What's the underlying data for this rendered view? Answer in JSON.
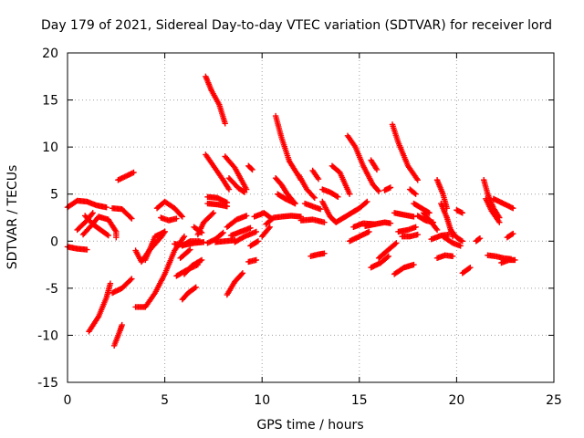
{
  "chart_data": {
    "type": "scatter",
    "title": "Day 179 of 2021, Sidereal Day-to-day VTEC variation (SDTVAR) for receiver lord",
    "xlabel": "GPS time / hours",
    "ylabel": "SDTVAR / TECUs",
    "xlim": [
      0,
      25
    ],
    "ylim": [
      -15,
      20
    ],
    "xticks": [
      0,
      5,
      10,
      15,
      20,
      25
    ],
    "yticks": [
      -15,
      -10,
      -5,
      0,
      5,
      10,
      15,
      20
    ],
    "grid": true,
    "marker": "+",
    "color": "#ff0000",
    "tracks": [
      [
        [
          0.0,
          3.6
        ],
        [
          0.5,
          4.3
        ],
        [
          1.0,
          4.2
        ],
        [
          1.5,
          3.8
        ],
        [
          2.0,
          3.6
        ]
      ],
      [
        [
          0.0,
          -0.6
        ],
        [
          0.5,
          -0.8
        ],
        [
          1.0,
          -0.9
        ]
      ],
      [
        [
          0.5,
          1.2
        ],
        [
          1.0,
          2.2
        ],
        [
          1.3,
          3.0
        ]
      ],
      [
        [
          0.8,
          0.7
        ],
        [
          1.2,
          1.6
        ],
        [
          1.6,
          2.6
        ],
        [
          2.1,
          2.3
        ],
        [
          2.5,
          1.0
        ],
        [
          2.5,
          0.4
        ]
      ],
      [
        [
          0.9,
          2.7
        ],
        [
          1.3,
          1.8
        ],
        [
          1.7,
          1.2
        ],
        [
          2.1,
          0.6
        ]
      ],
      [
        [
          1.1,
          -9.6
        ],
        [
          1.6,
          -8.0
        ],
        [
          2.0,
          -6.0
        ],
        [
          2.2,
          -4.5
        ]
      ],
      [
        [
          2.4,
          -11.1
        ],
        [
          2.7,
          -9.5
        ],
        [
          2.8,
          -8.9
        ]
      ],
      [
        [
          2.3,
          -5.5
        ],
        [
          2.8,
          -5.0
        ],
        [
          3.3,
          -4.0
        ]
      ],
      [
        [
          2.6,
          6.5
        ],
        [
          3.0,
          6.9
        ],
        [
          3.4,
          7.3
        ]
      ],
      [
        [
          2.3,
          3.5
        ],
        [
          2.8,
          3.4
        ],
        [
          3.3,
          2.4
        ]
      ],
      [
        [
          3.5,
          -1.0
        ],
        [
          3.8,
          -2.2
        ],
        [
          4.2,
          -1.0
        ],
        [
          4.8,
          0.4
        ],
        [
          5.0,
          1.0
        ]
      ],
      [
        [
          3.5,
          -7.0
        ],
        [
          4.0,
          -7.0
        ],
        [
          4.5,
          -5.5
        ],
        [
          5.0,
          -3.5
        ],
        [
          5.5,
          -1.0
        ],
        [
          6.0,
          0.5
        ]
      ],
      [
        [
          4.0,
          -2.0
        ],
        [
          4.5,
          0.5
        ],
        [
          5.0,
          1.0
        ]
      ],
      [
        [
          4.6,
          3.5
        ],
        [
          5.0,
          4.2
        ],
        [
          5.5,
          3.5
        ],
        [
          5.9,
          2.6
        ]
      ],
      [
        [
          4.8,
          2.5
        ],
        [
          5.2,
          2.2
        ],
        [
          5.6,
          2.4
        ]
      ],
      [
        [
          5.5,
          -0.3
        ],
        [
          6.0,
          -0.4
        ],
        [
          6.5,
          -0.2
        ],
        [
          7.0,
          -0.1
        ]
      ],
      [
        [
          5.9,
          -0.5
        ],
        [
          6.3,
          0.0
        ],
        [
          6.8,
          0.0
        ]
      ],
      [
        [
          5.8,
          -1.8
        ],
        [
          6.3,
          -0.9
        ]
      ],
      [
        [
          5.9,
          -6.2
        ],
        [
          6.2,
          -5.5
        ],
        [
          6.6,
          -4.9
        ]
      ],
      [
        [
          6.0,
          -3.5
        ],
        [
          6.4,
          -2.6
        ],
        [
          6.9,
          -2.0
        ]
      ],
      [
        [
          5.6,
          -3.7
        ],
        [
          6.1,
          -3.1
        ],
        [
          6.7,
          -2.5
        ]
      ],
      [
        [
          6.5,
          1.5
        ],
        [
          6.9,
          0.9
        ]
      ],
      [
        [
          6.7,
          0.7
        ],
        [
          7.0,
          2.0
        ],
        [
          7.5,
          3.0
        ]
      ],
      [
        [
          7.1,
          17.5
        ],
        [
          7.4,
          16.0
        ],
        [
          7.8,
          14.5
        ],
        [
          8.1,
          12.5
        ]
      ],
      [
        [
          7.1,
          9.2
        ],
        [
          7.5,
          8.0
        ],
        [
          8.0,
          6.5
        ],
        [
          8.3,
          5.5
        ]
      ],
      [
        [
          7.2,
          4.7
        ],
        [
          7.7,
          4.6
        ],
        [
          8.2,
          4.1
        ]
      ],
      [
        [
          7.2,
          4.0
        ],
        [
          7.7,
          3.9
        ],
        [
          8.2,
          3.7
        ]
      ],
      [
        [
          7.2,
          -0.2
        ],
        [
          7.6,
          0.2
        ],
        [
          8.0,
          0.9
        ]
      ],
      [
        [
          7.6,
          -0.1
        ],
        [
          8.1,
          0.0
        ],
        [
          8.6,
          0.1
        ]
      ],
      [
        [
          8.1,
          9.0
        ],
        [
          8.6,
          7.8
        ],
        [
          9.2,
          5.5
        ]
      ],
      [
        [
          8.3,
          6.7
        ],
        [
          8.8,
          5.6
        ],
        [
          9.1,
          5.2
        ]
      ],
      [
        [
          9.3,
          8.0
        ],
        [
          9.5,
          7.6
        ]
      ],
      [
        [
          8.2,
          1.5
        ],
        [
          8.7,
          2.3
        ],
        [
          9.2,
          2.7
        ]
      ],
      [
        [
          8.2,
          -5.7
        ],
        [
          8.6,
          -4.3
        ],
        [
          9.0,
          -3.4
        ]
      ],
      [
        [
          8.4,
          0.6
        ],
        [
          8.9,
          1.0
        ],
        [
          9.4,
          1.4
        ]
      ],
      [
        [
          8.6,
          -0.1
        ],
        [
          9.1,
          0.5
        ],
        [
          9.7,
          1.0
        ]
      ],
      [
        [
          9.3,
          -2.2
        ],
        [
          9.7,
          -2.0
        ]
      ],
      [
        [
          9.4,
          -0.5
        ],
        [
          9.8,
          0.0
        ]
      ],
      [
        [
          9.6,
          2.6
        ],
        [
          10.1,
          3.0
        ],
        [
          10.5,
          2.4
        ]
      ],
      [
        [
          10.2,
          1.8
        ],
        [
          10.6,
          2.5
        ],
        [
          11.0,
          2.6
        ],
        [
          11.5,
          2.7
        ],
        [
          12.0,
          2.6
        ]
      ],
      [
        [
          10.0,
          0.5
        ],
        [
          10.4,
          1.5
        ]
      ],
      [
        [
          10.7,
          13.3
        ],
        [
          11.0,
          11.0
        ],
        [
          11.4,
          8.5
        ],
        [
          12.0,
          6.5
        ]
      ],
      [
        [
          10.7,
          6.7
        ],
        [
          11.0,
          6.0
        ],
        [
          11.3,
          5.0
        ],
        [
          11.7,
          4.0
        ]
      ],
      [
        [
          10.8,
          5.0
        ],
        [
          11.2,
          4.5
        ],
        [
          11.7,
          4.0
        ]
      ],
      [
        [
          11.9,
          7.0
        ],
        [
          12.3,
          5.5
        ],
        [
          12.7,
          4.6
        ]
      ],
      [
        [
          12.0,
          2.2
        ],
        [
          12.6,
          2.3
        ],
        [
          13.2,
          2.0
        ]
      ],
      [
        [
          12.2,
          4.0
        ],
        [
          12.6,
          3.7
        ],
        [
          13.0,
          3.4
        ]
      ],
      [
        [
          12.5,
          -1.6
        ],
        [
          12.9,
          -1.4
        ],
        [
          13.2,
          -1.3
        ]
      ],
      [
        [
          12.6,
          7.5
        ],
        [
          12.9,
          6.6
        ]
      ],
      [
        [
          13.1,
          4.2
        ],
        [
          13.5,
          2.6
        ],
        [
          13.8,
          2.0
        ],
        [
          14.2,
          2.5
        ],
        [
          14.6,
          3.0
        ],
        [
          15.0,
          3.5
        ],
        [
          15.4,
          4.2
        ]
      ],
      [
        [
          13.1,
          5.5
        ],
        [
          13.5,
          5.2
        ],
        [
          13.9,
          4.7
        ]
      ],
      [
        [
          13.6,
          8.0
        ],
        [
          14.0,
          7.3
        ],
        [
          14.5,
          5.0
        ]
      ],
      [
        [
          14.4,
          11.2
        ],
        [
          14.8,
          10.0
        ],
        [
          15.2,
          8.0
        ],
        [
          15.7,
          6.0
        ],
        [
          16.0,
          5.3
        ]
      ],
      [
        [
          15.3,
          1.6
        ],
        [
          15.8,
          1.8
        ],
        [
          16.3,
          2.0
        ],
        [
          16.6,
          1.9
        ]
      ],
      [
        [
          14.5,
          0.0
        ],
        [
          15.0,
          0.5
        ],
        [
          15.5,
          1.0
        ]
      ],
      [
        [
          14.7,
          1.5
        ],
        [
          15.2,
          1.9
        ],
        [
          15.8,
          1.8
        ]
      ],
      [
        [
          15.6,
          8.6
        ],
        [
          15.9,
          7.6
        ]
      ],
      [
        [
          16.3,
          5.4
        ],
        [
          16.6,
          5.7
        ]
      ],
      [
        [
          16.0,
          -1.8
        ],
        [
          16.5,
          -0.9
        ],
        [
          16.9,
          -0.2
        ]
      ],
      [
        [
          15.6,
          -2.8
        ],
        [
          16.1,
          -2.3
        ],
        [
          16.5,
          -1.6
        ]
      ],
      [
        [
          16.7,
          12.4
        ],
        [
          17.0,
          10.5
        ],
        [
          17.5,
          8.0
        ],
        [
          18.0,
          6.5
        ]
      ],
      [
        [
          16.8,
          -3.5
        ],
        [
          17.3,
          -2.8
        ],
        [
          17.8,
          -2.5
        ]
      ],
      [
        [
          16.8,
          3.0
        ],
        [
          17.3,
          2.8
        ],
        [
          17.8,
          2.6
        ]
      ],
      [
        [
          17.0,
          1.0
        ],
        [
          17.5,
          1.2
        ],
        [
          17.9,
          1.5
        ]
      ],
      [
        [
          17.2,
          0.5
        ],
        [
          17.6,
          0.5
        ],
        [
          18.0,
          0.7
        ]
      ],
      [
        [
          17.6,
          5.5
        ],
        [
          17.9,
          5.0
        ]
      ],
      [
        [
          17.8,
          4.0
        ],
        [
          18.2,
          3.5
        ],
        [
          18.6,
          3.0
        ]
      ],
      [
        [
          18.0,
          2.7
        ],
        [
          18.4,
          2.2
        ],
        [
          18.8,
          2.0
        ]
      ],
      [
        [
          18.3,
          3.0
        ],
        [
          18.7,
          2.0
        ],
        [
          19.0,
          1.2
        ]
      ],
      [
        [
          18.7,
          0.2
        ],
        [
          19.2,
          0.6
        ],
        [
          19.6,
          0.7
        ]
      ],
      [
        [
          19.0,
          6.5
        ],
        [
          19.3,
          5.0
        ],
        [
          19.5,
          3.5
        ]
      ],
      [
        [
          19.2,
          4.0
        ],
        [
          19.5,
          2.5
        ],
        [
          19.8,
          0.5
        ]
      ],
      [
        [
          19.3,
          0.5
        ],
        [
          19.8,
          -0.2
        ],
        [
          20.2,
          -0.5
        ]
      ],
      [
        [
          19.7,
          1.2
        ],
        [
          20.0,
          0.4
        ],
        [
          20.3,
          0.0
        ]
      ],
      [
        [
          19.0,
          -1.8
        ],
        [
          19.4,
          -1.5
        ],
        [
          19.8,
          -1.6
        ]
      ],
      [
        [
          20.0,
          3.3
        ],
        [
          20.3,
          3.0
        ]
      ],
      [
        [
          20.3,
          -3.4
        ],
        [
          20.7,
          -2.8
        ]
      ],
      [
        [
          21.0,
          0.0
        ],
        [
          21.2,
          0.3
        ]
      ],
      [
        [
          21.4,
          6.5
        ],
        [
          21.6,
          5.0
        ],
        [
          21.9,
          3.5
        ],
        [
          22.2,
          2.5
        ]
      ],
      [
        [
          21.5,
          4.5
        ],
        [
          21.8,
          3.2
        ],
        [
          22.2,
          2.0
        ]
      ],
      [
        [
          21.6,
          -1.5
        ],
        [
          22.0,
          -1.6
        ],
        [
          22.4,
          -1.8
        ],
        [
          22.8,
          -1.9
        ]
      ],
      [
        [
          21.9,
          4.5
        ],
        [
          22.4,
          4.0
        ],
        [
          22.9,
          3.5
        ]
      ],
      [
        [
          22.3,
          -2.3
        ],
        [
          22.7,
          -2.0
        ],
        [
          23.0,
          -2.0
        ]
      ],
      [
        [
          22.6,
          0.4
        ],
        [
          22.9,
          0.8
        ]
      ]
    ]
  }
}
